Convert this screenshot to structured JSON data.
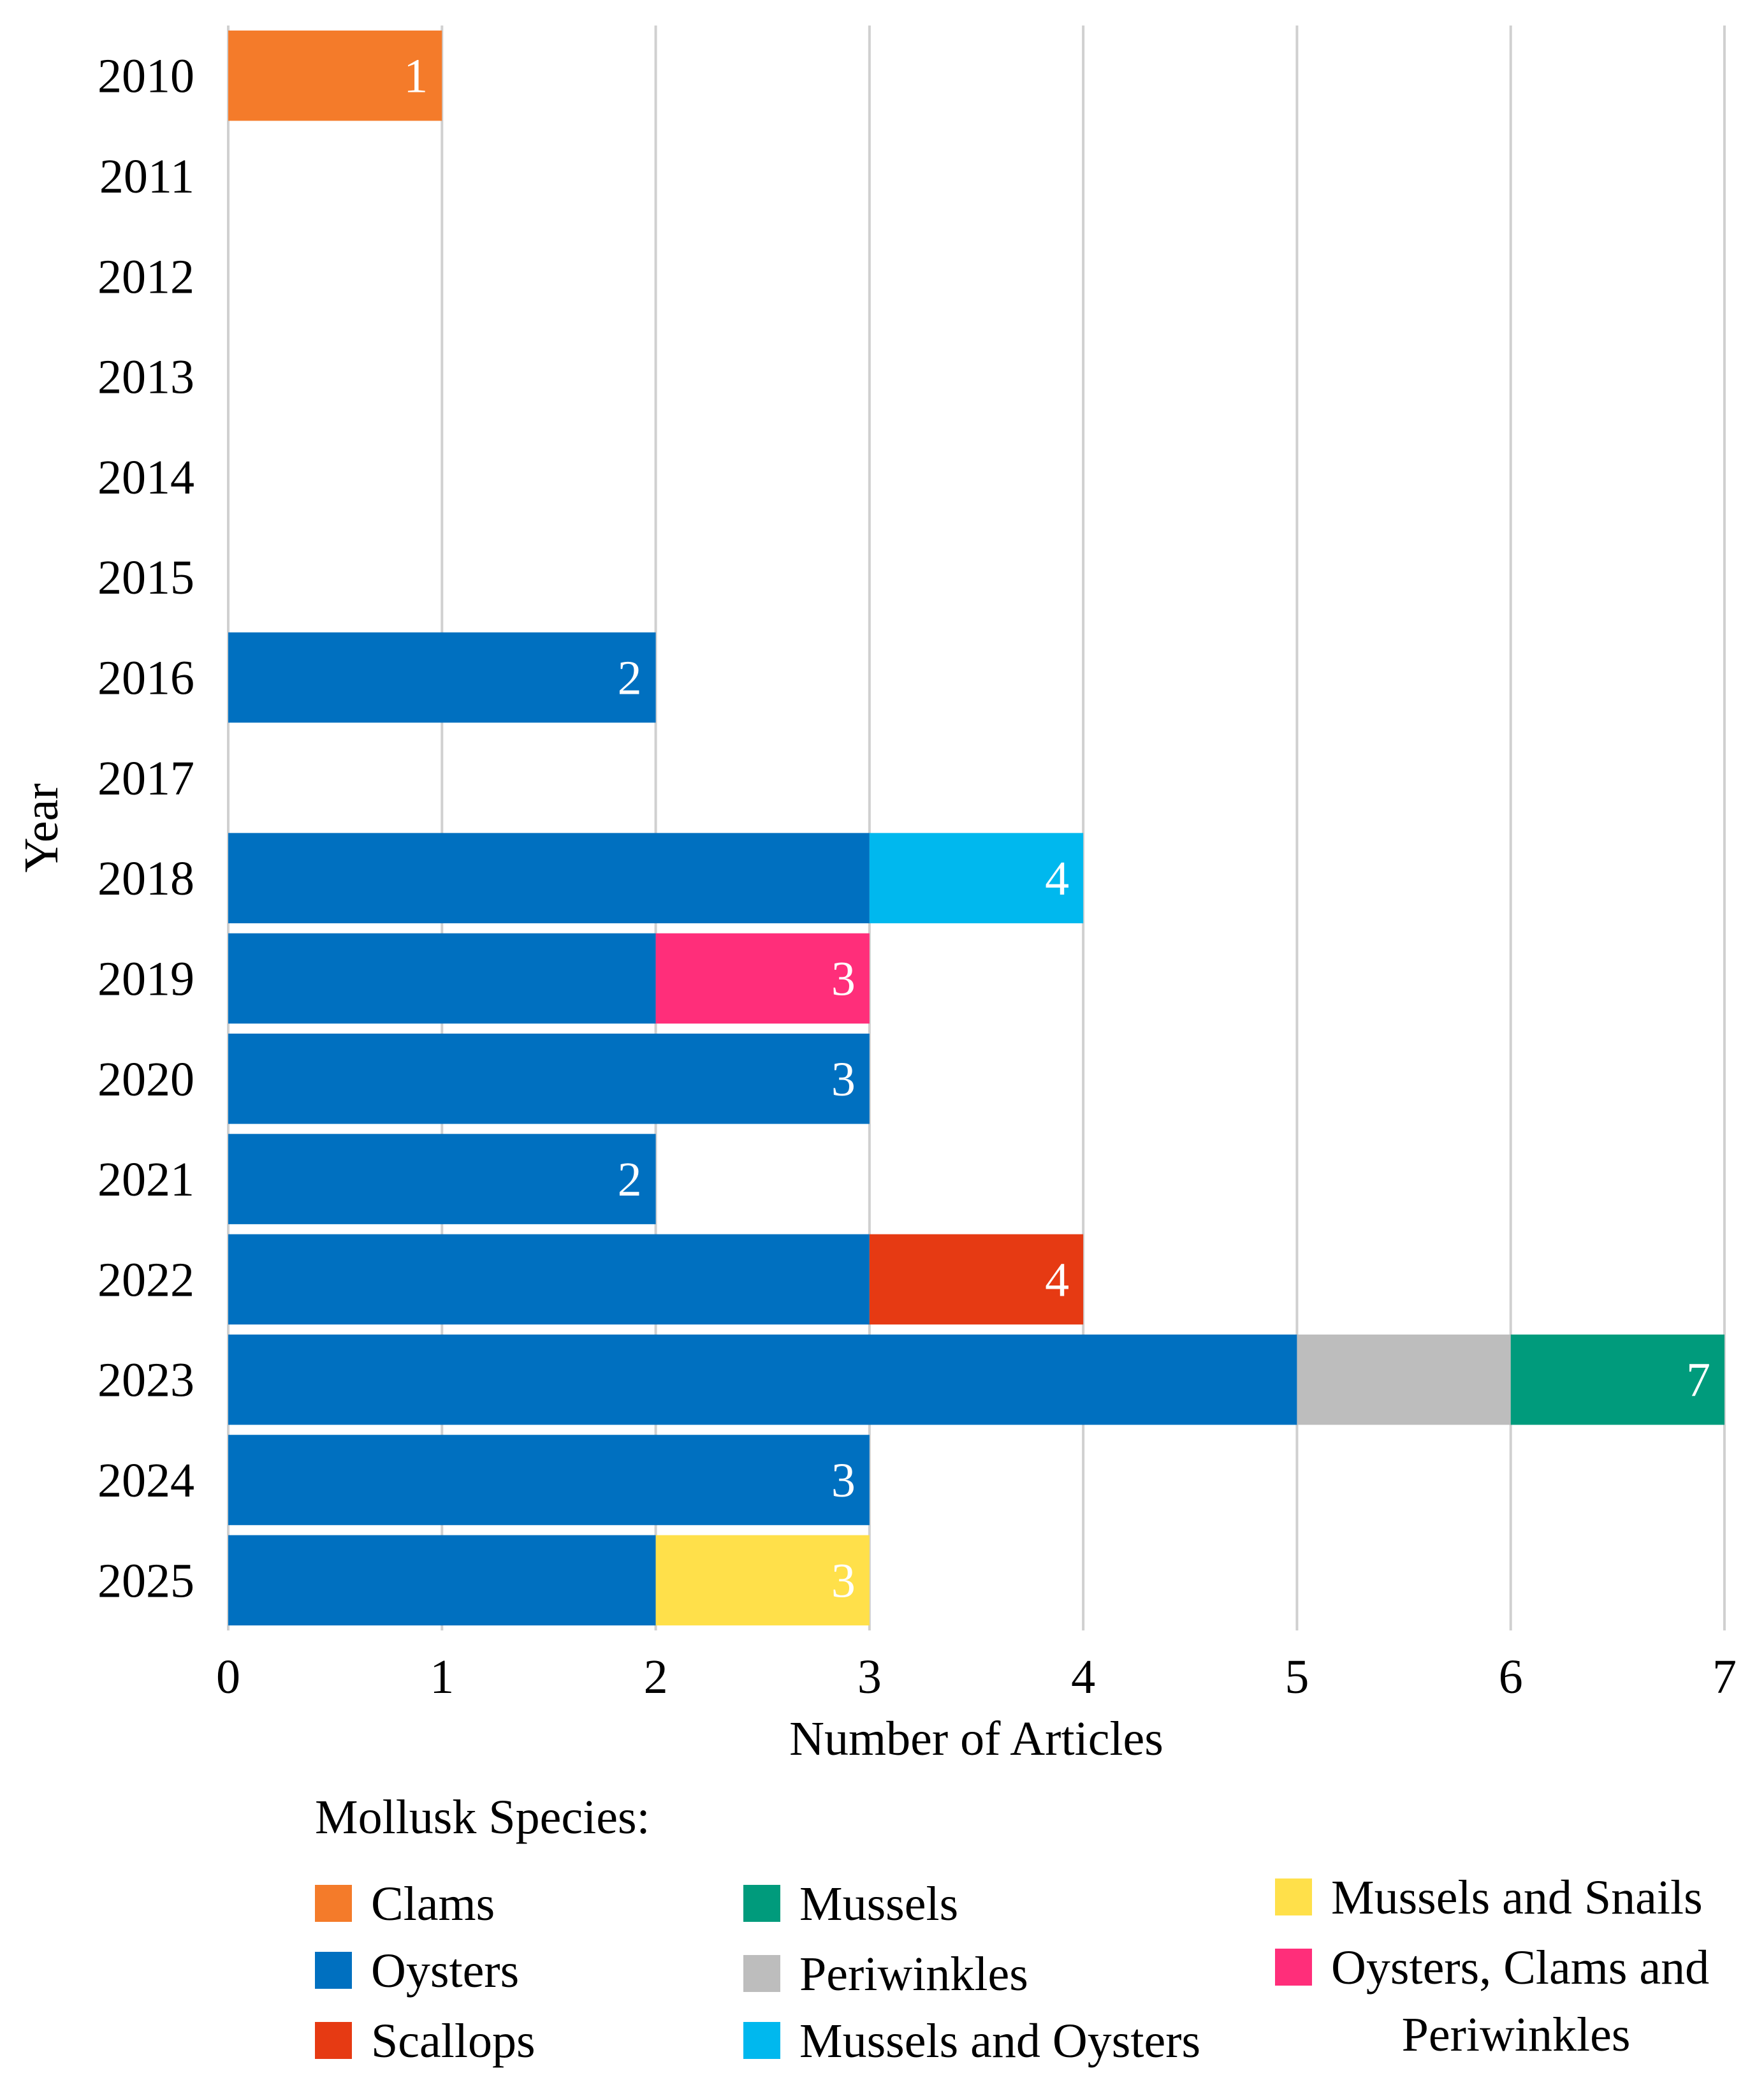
{
  "chart_data": {
    "type": "bar",
    "orientation": "horizontal",
    "stacked": true,
    "xlabel": "Number of Articles",
    "ylabel": "Year",
    "xlim": [
      0,
      7
    ],
    "xticks": [
      "0",
      "1",
      "2",
      "3",
      "4",
      "5",
      "6",
      "7"
    ],
    "grid": true,
    "categories": [
      "2010",
      "2011",
      "2012",
      "2013",
      "2014",
      "2015",
      "2016",
      "2017",
      "2018",
      "2019",
      "2020",
      "2021",
      "2022",
      "2023",
      "2024",
      "2025"
    ],
    "series": [
      {
        "name": "Oysters",
        "color": "#0070C0",
        "values": [
          0,
          0,
          0,
          0,
          0,
          0,
          2,
          0,
          3,
          2,
          3,
          2,
          3,
          5,
          3,
          2
        ]
      },
      {
        "name": "Clams",
        "color": "#F47B2A",
        "values": [
          1,
          0,
          0,
          0,
          0,
          0,
          0,
          0,
          0,
          0,
          0,
          0,
          0,
          0,
          0,
          0
        ]
      },
      {
        "name": "Mussels and Oysters",
        "color": "#00B8EE",
        "values": [
          0,
          0,
          0,
          0,
          0,
          0,
          0,
          0,
          1,
          0,
          0,
          0,
          0,
          0,
          0,
          0
        ]
      },
      {
        "name": "Oysters, Clams and Periwinkles",
        "color": "#FF2E7A",
        "values": [
          0,
          0,
          0,
          0,
          0,
          0,
          0,
          0,
          0,
          1,
          0,
          0,
          0,
          0,
          0,
          0
        ]
      },
      {
        "name": "Scallops",
        "color": "#E63A13",
        "values": [
          0,
          0,
          0,
          0,
          0,
          0,
          0,
          0,
          0,
          0,
          0,
          0,
          1,
          0,
          0,
          0
        ]
      },
      {
        "name": "Periwinkles",
        "color": "#BDBDBD",
        "values": [
          0,
          0,
          0,
          0,
          0,
          0,
          0,
          0,
          0,
          0,
          0,
          0,
          0,
          1,
          0,
          0
        ]
      },
      {
        "name": "Mussels",
        "color": "#009B7C",
        "values": [
          0,
          0,
          0,
          0,
          0,
          0,
          0,
          0,
          0,
          0,
          0,
          0,
          0,
          1,
          0,
          0
        ]
      },
      {
        "name": "Mussels and Snails",
        "color": "#FFE04A",
        "values": [
          0,
          0,
          0,
          0,
          0,
          0,
          0,
          0,
          0,
          0,
          0,
          0,
          0,
          0,
          0,
          1
        ]
      }
    ],
    "totals": [
      "1",
      "",
      "",
      "",
      "",
      "",
      "2",
      "",
      "4",
      "3",
      "3",
      "2",
      "4",
      "7",
      "3",
      "3"
    ],
    "legend": {
      "title": "Mollusk Species:",
      "placement": "bottom",
      "columns": [
        [
          {
            "label": "Clams",
            "color": "#F47B2A"
          },
          {
            "label": "Oysters",
            "color": "#0070C0"
          },
          {
            "label": "Scallops",
            "color": "#E63A13"
          }
        ],
        [
          {
            "label": "Mussels",
            "color": "#009B7C"
          },
          {
            "label": "Periwinkles",
            "color": "#BDBDBD"
          },
          {
            "label": "Mussels and Oysters",
            "color": "#00B8EE"
          }
        ],
        [
          {
            "label": "Mussels and Snails",
            "color": "#FFE04A"
          },
          {
            "label": "Oysters, Clams and",
            "label2": "Periwinkles",
            "color": "#FF2E7A"
          }
        ]
      ]
    }
  }
}
